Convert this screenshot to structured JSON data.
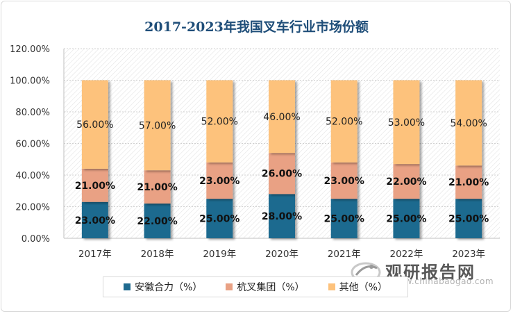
{
  "chart_data": {
    "type": "bar",
    "stacked": true,
    "title": "2017-2023年我国叉车行业市场份额",
    "categories": [
      "2017年",
      "2018年",
      "2019年",
      "2020年",
      "2021年",
      "2022年",
      "2023年"
    ],
    "ylim": [
      0,
      120
    ],
    "yticks": [
      "0.00%",
      "20.00%",
      "40.00%",
      "60.00%",
      "80.00%",
      "100.00%",
      "120.00%"
    ],
    "grid": true,
    "legend_position": "bottom",
    "series": [
      {
        "name": "安徽合力（%）",
        "color": "#1f6a8f",
        "values": [
          23,
          22,
          25,
          28,
          25,
          25,
          25
        ],
        "labels": [
          "23.00%",
          "22.00%",
          "25.00%",
          "28.00%",
          "25.00%",
          "25.00%",
          "25.00%"
        ]
      },
      {
        "name": "杭叉集团（%）",
        "color": "#e9a184",
        "values": [
          21,
          21,
          23,
          26,
          23,
          22,
          21
        ],
        "labels": [
          "21.00%",
          "21.00%",
          "23.00%",
          "26.00%",
          "23.00%",
          "22.00%",
          "21.00%"
        ]
      },
      {
        "name": "其他（%）",
        "color": "#fdc27c",
        "values": [
          56,
          57,
          52,
          46,
          52,
          53,
          54
        ],
        "labels": [
          "56.00%",
          "57.00%",
          "52.00%",
          "46.00%",
          "52.00%",
          "53.00%",
          "54.00%"
        ]
      }
    ]
  },
  "watermark": {
    "title": "观研报告网",
    "url": "www.chinabaogao.com"
  }
}
